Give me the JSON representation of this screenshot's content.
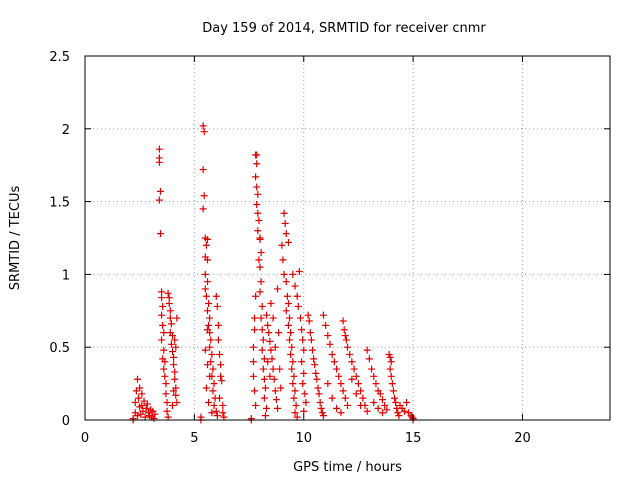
{
  "chart_data": {
    "type": "scatter",
    "title": "Day 159 of 2014, SRMTID for receiver cnmr",
    "xlabel": "GPS time / hours",
    "ylabel": "SRMTID / TECUs",
    "xlim": [
      0,
      24
    ],
    "ylim": [
      0,
      2.5
    ],
    "xticks": [
      0,
      5,
      10,
      15,
      20
    ],
    "xtick_labels": [
      "0",
      "5",
      "10",
      "15",
      "20"
    ],
    "yticks": [
      0,
      0.5,
      1,
      1.5,
      2,
      2.5
    ],
    "ytick_labels": [
      "0",
      "0.5",
      "1",
      "1.5",
      "2",
      "2.5"
    ],
    "grid": true,
    "marker": "+",
    "color": "#e00000",
    "series": [
      {
        "points": [
          [
            2.2,
            0.0
          ],
          [
            2.2,
            0.01
          ],
          [
            2.3,
            0.05
          ],
          [
            2.3,
            0.12
          ],
          [
            2.35,
            0.2
          ],
          [
            2.4,
            0.28
          ],
          [
            2.4,
            0.03
          ],
          [
            2.45,
            0.15
          ],
          [
            2.5,
            0.09
          ],
          [
            2.5,
            0.22
          ],
          [
            2.55,
            0.04
          ],
          [
            2.6,
            0.18
          ],
          [
            2.6,
            0.1
          ],
          [
            2.65,
            0.06
          ],
          [
            2.7,
            0.13
          ],
          [
            2.75,
            0.02
          ],
          [
            2.8,
            0.08
          ],
          [
            2.85,
            0.11
          ],
          [
            2.9,
            0.05
          ],
          [
            2.95,
            0.03
          ],
          [
            3.0,
            0.07
          ],
          [
            3.05,
            0.02
          ],
          [
            3.1,
            0.06
          ],
          [
            3.15,
            0.01
          ],
          [
            3.2,
            0.04
          ],
          [
            3.4,
            1.86
          ],
          [
            3.4,
            1.8
          ],
          [
            3.4,
            1.77
          ],
          [
            3.45,
            1.57
          ],
          [
            3.4,
            1.51
          ],
          [
            3.45,
            1.28
          ],
          [
            3.5,
            0.88
          ],
          [
            3.5,
            0.84
          ],
          [
            3.55,
            0.78
          ],
          [
            3.5,
            0.72
          ],
          [
            3.55,
            0.65
          ],
          [
            3.6,
            0.6
          ],
          [
            3.5,
            0.55
          ],
          [
            3.6,
            0.48
          ],
          [
            3.55,
            0.42
          ],
          [
            3.65,
            0.4
          ],
          [
            3.6,
            0.35
          ],
          [
            3.65,
            0.3
          ],
          [
            3.7,
            0.25
          ],
          [
            3.7,
            0.18
          ],
          [
            3.75,
            0.12
          ],
          [
            3.75,
            0.06
          ],
          [
            3.8,
            0.02
          ],
          [
            3.8,
            0.87
          ],
          [
            3.85,
            0.84
          ],
          [
            3.85,
            0.8
          ],
          [
            3.9,
            0.75
          ],
          [
            3.9,
            0.7
          ],
          [
            3.95,
            0.66
          ],
          [
            3.9,
            0.6
          ],
          [
            4.0,
            0.58
          ],
          [
            3.95,
            0.52
          ],
          [
            4.0,
            0.47
          ],
          [
            4.05,
            0.43
          ],
          [
            4.05,
            0.38
          ],
          [
            4.1,
            0.33
          ],
          [
            4.1,
            0.28
          ],
          [
            4.15,
            0.22
          ],
          [
            4.15,
            0.17
          ],
          [
            4.2,
            0.12
          ],
          [
            4.2,
            0.7
          ],
          [
            4.1,
            0.55
          ],
          [
            4.15,
            0.5
          ],
          [
            4.05,
            0.2
          ],
          [
            4.0,
            0.1
          ],
          [
            5.3,
            0.0
          ],
          [
            5.3,
            0.02
          ],
          [
            5.4,
            2.02
          ],
          [
            5.45,
            1.98
          ],
          [
            5.4,
            1.72
          ],
          [
            5.45,
            1.54
          ],
          [
            5.4,
            1.45
          ],
          [
            5.5,
            1.25
          ],
          [
            5.55,
            1.2
          ],
          [
            5.6,
            1.1
          ],
          [
            5.5,
            1.0
          ],
          [
            5.6,
            0.95
          ],
          [
            5.55,
            0.85
          ],
          [
            5.65,
            0.8
          ],
          [
            5.6,
            0.75
          ],
          [
            5.7,
            0.7
          ],
          [
            5.65,
            0.65
          ],
          [
            5.7,
            0.6
          ],
          [
            5.75,
            0.55
          ],
          [
            5.7,
            0.5
          ],
          [
            5.8,
            0.45
          ],
          [
            5.75,
            0.4
          ],
          [
            5.85,
            0.35
          ],
          [
            5.8,
            0.3
          ],
          [
            5.9,
            0.25
          ],
          [
            5.85,
            0.2
          ],
          [
            5.95,
            0.15
          ],
          [
            5.9,
            0.1
          ],
          [
            6.0,
            0.06
          ],
          [
            6.05,
            0.03
          ],
          [
            5.6,
            1.24
          ],
          [
            5.5,
            1.12
          ],
          [
            5.5,
            0.9
          ],
          [
            5.6,
            0.62
          ],
          [
            5.5,
            0.48
          ],
          [
            5.6,
            0.38
          ],
          [
            5.7,
            0.3
          ],
          [
            5.55,
            0.22
          ],
          [
            5.65,
            0.12
          ],
          [
            5.8,
            0.05
          ],
          [
            6.0,
            0.85
          ],
          [
            6.05,
            0.78
          ],
          [
            6.1,
            0.65
          ],
          [
            6.1,
            0.55
          ],
          [
            6.15,
            0.45
          ],
          [
            6.2,
            0.38
          ],
          [
            6.2,
            0.3
          ],
          [
            6.25,
            0.27
          ],
          [
            6.15,
            0.15
          ],
          [
            6.3,
            0.1
          ],
          [
            6.3,
            0.05
          ],
          [
            6.35,
            0.02
          ],
          [
            7.6,
            0.0
          ],
          [
            7.6,
            0.01
          ],
          [
            7.7,
            0.3
          ],
          [
            7.7,
            0.5
          ],
          [
            7.75,
            0.7
          ],
          [
            7.8,
            0.85
          ],
          [
            7.8,
            1.82
          ],
          [
            7.85,
            1.76
          ],
          [
            7.8,
            1.67
          ],
          [
            7.85,
            1.6
          ],
          [
            7.9,
            1.55
          ],
          [
            7.85,
            1.48
          ],
          [
            7.9,
            1.42
          ],
          [
            7.95,
            1.37
          ],
          [
            7.9,
            1.3
          ],
          [
            8.0,
            1.25
          ],
          [
            7.95,
            1.1
          ],
          [
            8.0,
            1.05
          ],
          [
            8.05,
            0.95
          ],
          [
            8.0,
            0.88
          ],
          [
            8.1,
            0.78
          ],
          [
            8.05,
            0.7
          ],
          [
            8.1,
            0.62
          ],
          [
            8.15,
            0.55
          ],
          [
            8.1,
            0.48
          ],
          [
            8.2,
            0.42
          ],
          [
            8.15,
            0.35
          ],
          [
            8.2,
            0.28
          ],
          [
            8.25,
            0.22
          ],
          [
            8.2,
            0.15
          ],
          [
            8.3,
            0.08
          ],
          [
            8.25,
            0.03
          ],
          [
            7.85,
            1.82
          ],
          [
            8.0,
            1.24
          ],
          [
            8.05,
            1.15
          ],
          [
            7.75,
            0.62
          ],
          [
            7.7,
            0.4
          ],
          [
            7.75,
            0.2
          ],
          [
            7.8,
            0.1
          ],
          [
            8.3,
            0.72
          ],
          [
            8.35,
            0.65
          ],
          [
            8.4,
            0.6
          ],
          [
            8.45,
            0.54
          ],
          [
            8.5,
            0.48
          ],
          [
            8.55,
            0.42
          ],
          [
            8.6,
            0.35
          ],
          [
            8.65,
            0.28
          ],
          [
            8.7,
            0.2
          ],
          [
            8.75,
            0.14
          ],
          [
            8.8,
            0.08
          ],
          [
            8.35,
            0.4
          ],
          [
            8.45,
            0.3
          ],
          [
            8.5,
            0.8
          ],
          [
            8.6,
            0.7
          ],
          [
            8.7,
            0.5
          ],
          [
            8.8,
            0.9
          ],
          [
            8.85,
            0.6
          ],
          [
            8.9,
            0.35
          ],
          [
            8.95,
            0.22
          ],
          [
            9.0,
            1.2
          ],
          [
            9.05,
            1.1
          ],
          [
            9.1,
            1.42
          ],
          [
            9.15,
            1.35
          ],
          [
            9.2,
            1.28
          ],
          [
            9.1,
            1.0
          ],
          [
            9.2,
            0.95
          ],
          [
            9.25,
            0.85
          ],
          [
            9.3,
            0.8
          ],
          [
            9.2,
            0.75
          ],
          [
            9.35,
            0.7
          ],
          [
            9.3,
            0.65
          ],
          [
            9.4,
            0.6
          ],
          [
            9.35,
            0.55
          ],
          [
            9.45,
            0.5
          ],
          [
            9.4,
            0.45
          ],
          [
            9.5,
            0.4
          ],
          [
            9.45,
            0.35
          ],
          [
            9.55,
            0.3
          ],
          [
            9.5,
            0.25
          ],
          [
            9.6,
            0.2
          ],
          [
            9.55,
            0.15
          ],
          [
            9.65,
            0.1
          ],
          [
            9.6,
            0.05
          ],
          [
            9.7,
            0.02
          ],
          [
            9.3,
            1.22
          ],
          [
            9.5,
            1.0
          ],
          [
            9.6,
            0.92
          ],
          [
            9.7,
            0.85
          ],
          [
            9.8,
            1.02
          ],
          [
            9.75,
            0.78
          ],
          [
            9.85,
            0.7
          ],
          [
            9.9,
            0.62
          ],
          [
            9.95,
            0.55
          ],
          [
            10.0,
            0.48
          ],
          [
            9.9,
            0.4
          ],
          [
            10.0,
            0.32
          ],
          [
            9.95,
            0.25
          ],
          [
            10.05,
            0.18
          ],
          [
            10.1,
            0.12
          ],
          [
            10.0,
            0.06
          ],
          [
            10.2,
            0.72
          ],
          [
            10.25,
            0.68
          ],
          [
            10.3,
            0.6
          ],
          [
            10.35,
            0.55
          ],
          [
            10.4,
            0.48
          ],
          [
            10.45,
            0.42
          ],
          [
            10.5,
            0.38
          ],
          [
            10.55,
            0.32
          ],
          [
            10.6,
            0.28
          ],
          [
            10.65,
            0.22
          ],
          [
            10.7,
            0.18
          ],
          [
            10.75,
            0.12
          ],
          [
            10.8,
            0.08
          ],
          [
            10.85,
            0.05
          ],
          [
            10.9,
            0.03
          ],
          [
            10.9,
            0.72
          ],
          [
            11.0,
            0.65
          ],
          [
            11.1,
            0.58
          ],
          [
            11.2,
            0.52
          ],
          [
            11.3,
            0.45
          ],
          [
            11.4,
            0.4
          ],
          [
            11.5,
            0.35
          ],
          [
            11.6,
            0.3
          ],
          [
            11.7,
            0.25
          ],
          [
            11.8,
            0.2
          ],
          [
            11.9,
            0.15
          ],
          [
            12.0,
            0.1
          ],
          [
            11.1,
            0.25
          ],
          [
            11.3,
            0.15
          ],
          [
            11.5,
            0.08
          ],
          [
            11.7,
            0.05
          ],
          [
            11.8,
            0.68
          ],
          [
            11.85,
            0.62
          ],
          [
            11.9,
            0.58
          ],
          [
            11.95,
            0.55
          ],
          [
            12.0,
            0.5
          ],
          [
            12.1,
            0.45
          ],
          [
            12.2,
            0.4
          ],
          [
            12.3,
            0.35
          ],
          [
            12.4,
            0.3
          ],
          [
            12.5,
            0.25
          ],
          [
            12.6,
            0.2
          ],
          [
            12.7,
            0.15
          ],
          [
            12.8,
            0.1
          ],
          [
            12.9,
            0.06
          ],
          [
            12.2,
            0.28
          ],
          [
            12.4,
            0.18
          ],
          [
            12.6,
            0.1
          ],
          [
            12.9,
            0.48
          ],
          [
            13.0,
            0.42
          ],
          [
            13.1,
            0.35
          ],
          [
            13.2,
            0.3
          ],
          [
            13.3,
            0.25
          ],
          [
            13.4,
            0.2
          ],
          [
            13.5,
            0.18
          ],
          [
            13.6,
            0.14
          ],
          [
            13.7,
            0.1
          ],
          [
            13.8,
            0.07
          ],
          [
            13.2,
            0.12
          ],
          [
            13.4,
            0.08
          ],
          [
            13.6,
            0.05
          ],
          [
            13.9,
            0.45
          ],
          [
            13.95,
            0.43
          ],
          [
            14.0,
            0.4
          ],
          [
            13.95,
            0.35
          ],
          [
            14.0,
            0.3
          ],
          [
            14.05,
            0.25
          ],
          [
            14.1,
            0.2
          ],
          [
            14.15,
            0.15
          ],
          [
            14.2,
            0.12
          ],
          [
            14.25,
            0.08
          ],
          [
            14.3,
            0.05
          ],
          [
            14.35,
            0.03
          ],
          [
            14.4,
            0.1
          ],
          [
            14.5,
            0.08
          ],
          [
            14.6,
            0.06
          ],
          [
            14.7,
            0.12
          ],
          [
            14.8,
            0.05
          ],
          [
            14.9,
            0.03
          ],
          [
            14.95,
            0.02
          ],
          [
            15.0,
            0.01
          ],
          [
            15.0,
            0.0
          ]
        ]
      }
    ]
  }
}
